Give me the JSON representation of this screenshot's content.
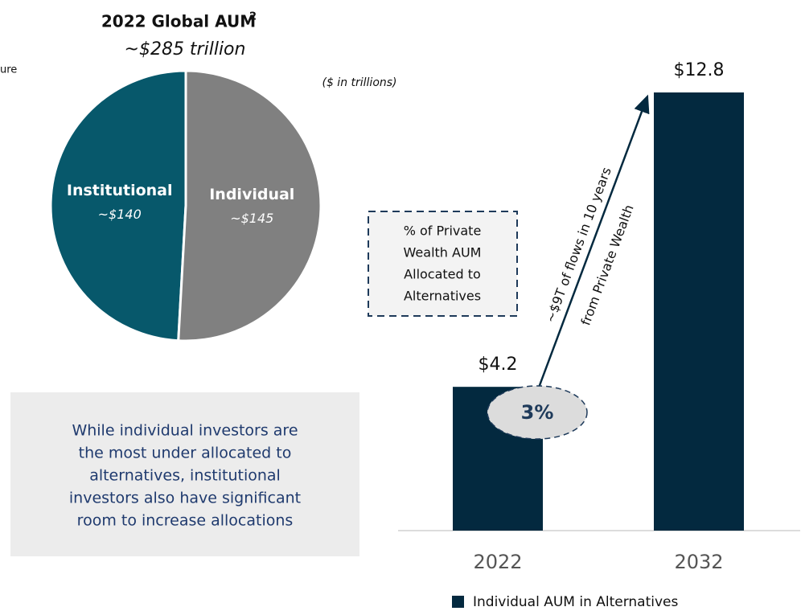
{
  "fragment": "ure",
  "chart_data": [
    {
      "type": "pie",
      "title": "2022 Global AUM",
      "title_footnote": "2",
      "subtitle": "~$285 trillion",
      "categories": [
        "Institutional",
        "Individual"
      ],
      "values": [
        140,
        145
      ],
      "value_labels": [
        "~$140",
        "~$145"
      ],
      "colors": [
        "#07586b",
        "#808080"
      ]
    },
    {
      "type": "bar",
      "subtitle": "($ in trillions)",
      "categories": [
        "2022",
        "2032"
      ],
      "values": [
        4.2,
        12.8
      ],
      "value_labels": [
        "$4.2",
        "$12.8"
      ],
      "ylim": [
        0,
        12.8
      ],
      "series_name": "Individual AUM in Alternatives",
      "color": "#03293f",
      "annotations": {
        "box": [
          "% of Private",
          "Wealth AUM",
          "Allocated to",
          "Alternatives"
        ],
        "ellipse": "3%",
        "arrow": [
          "~$9T of flows in 10 years",
          "from Private Wealth"
        ]
      }
    }
  ],
  "callout": {
    "lines": [
      "While individual investors are",
      "the most under allocated to",
      "alternatives, institutional",
      "investors also have significant",
      "room to increase allocations"
    ]
  }
}
